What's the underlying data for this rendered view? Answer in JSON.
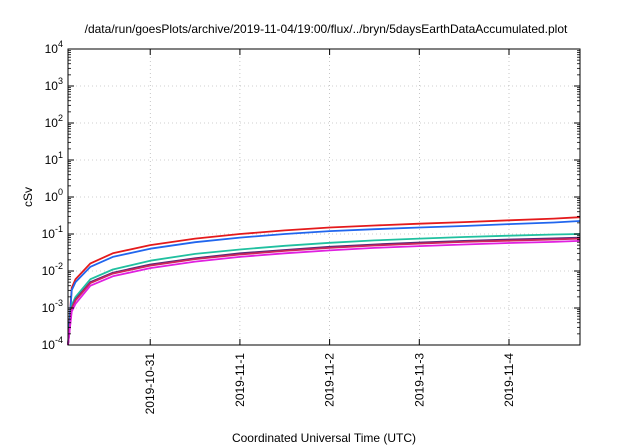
{
  "chart_data": {
    "type": "line",
    "title": "/data/run/goesPlots/archive/2019-11-04/19:00/flux/../bryn/5daysEarthDataAccumulated.plot",
    "xlabel": "Coordinated Universal Time (UTC)",
    "ylabel": "cSv",
    "y_scale": "log",
    "ylim": [
      0.0001,
      10000
    ],
    "xlim": [
      "2019-10-30T02:00",
      "2019-11-04T19:00"
    ],
    "x_ticks": [
      "2019-10-31",
      "2019-11-1",
      "2019-11-2",
      "2019-11-3",
      "2019-11-4"
    ],
    "y_ticks": [
      {
        "base": "10",
        "exp": "-4"
      },
      {
        "base": "10",
        "exp": "-3"
      },
      {
        "base": "10",
        "exp": "-2"
      },
      {
        "base": "10",
        "exp": "-1"
      },
      {
        "base": "10",
        "exp": "0"
      },
      {
        "base": "10",
        "exp": "1"
      },
      {
        "base": "10",
        "exp": "2"
      },
      {
        "base": "10",
        "exp": "3"
      },
      {
        "base": "10",
        "exp": "4"
      }
    ],
    "grid": true,
    "legend": false,
    "x": [
      "2019-10-30T02:00",
      "2019-10-30T03:00",
      "2019-10-30T04:00",
      "2019-10-30T08:00",
      "2019-10-30T14:00",
      "2019-10-31T00:00",
      "2019-10-31T12:00",
      "2019-11-01T00:00",
      "2019-11-01T12:00",
      "2019-11-02T00:00",
      "2019-11-02T12:00",
      "2019-11-03T00:00",
      "2019-11-03T12:00",
      "2019-11-04T00:00",
      "2019-11-04T12:00",
      "2019-11-04T19:00"
    ],
    "series": [
      {
        "color": "#e41a1c",
        "values": [
          0.0001,
          0.0035,
          0.006,
          0.016,
          0.03,
          0.05,
          0.075,
          0.1,
          0.125,
          0.15,
          0.17,
          0.19,
          0.21,
          0.235,
          0.26,
          0.285
        ]
      },
      {
        "color": "#2166ee",
        "values": [
          0.0001,
          0.003,
          0.005,
          0.013,
          0.024,
          0.04,
          0.06,
          0.08,
          0.1,
          0.12,
          0.135,
          0.15,
          0.165,
          0.185,
          0.205,
          0.225
        ]
      },
      {
        "color": "#20c0a0",
        "values": [
          0.0001,
          0.0012,
          0.002,
          0.006,
          0.011,
          0.019,
          0.029,
          0.038,
          0.048,
          0.058,
          0.067,
          0.075,
          0.083,
          0.09,
          0.097,
          0.1
        ]
      },
      {
        "color": "#5a2a7a",
        "values": [
          0.0001,
          0.001,
          0.0017,
          0.005,
          0.009,
          0.015,
          0.022,
          0.03,
          0.037,
          0.045,
          0.052,
          0.059,
          0.065,
          0.071,
          0.076,
          0.08
        ]
      },
      {
        "color": "#d0245a",
        "values": [
          0.0001,
          0.00095,
          0.0016,
          0.0047,
          0.0085,
          0.014,
          0.021,
          0.028,
          0.035,
          0.042,
          0.049,
          0.055,
          0.061,
          0.066,
          0.071,
          0.075
        ]
      },
      {
        "color": "#e020e0",
        "values": [
          0.0001,
          0.0008,
          0.0013,
          0.004,
          0.0072,
          0.012,
          0.018,
          0.024,
          0.03,
          0.036,
          0.042,
          0.047,
          0.052,
          0.057,
          0.061,
          0.065
        ]
      }
    ]
  }
}
